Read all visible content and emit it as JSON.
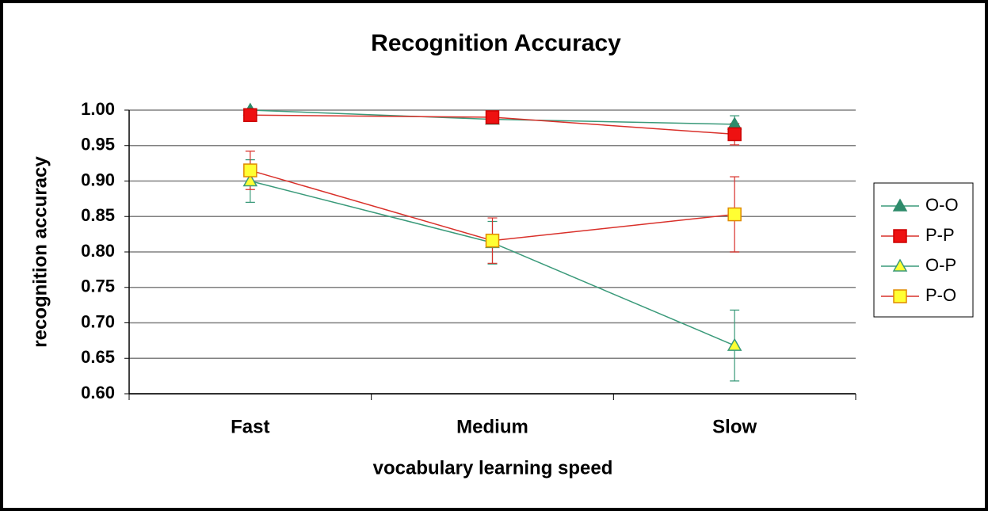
{
  "chart_data": {
    "type": "line",
    "title": "Recognition Accuracy",
    "xlabel": "vocabulary learning speed",
    "ylabel": "recognition accuracy",
    "categories": [
      "Fast",
      "Medium",
      "Slow"
    ],
    "ylim": [
      0.6,
      1.0
    ],
    "yticks": [
      {
        "value": 0.6,
        "label": "0.60"
      },
      0.65,
      {
        "value": 0.7,
        "label": "0.70"
      },
      0.75,
      {
        "value": 0.8,
        "label": "0.80"
      },
      0.85,
      {
        "value": 0.9,
        "label": "0.90"
      },
      0.95,
      {
        "value": 1.0,
        "label": "1.00"
      }
    ],
    "grid": true,
    "legend": "right",
    "series": [
      {
        "name": "O-O",
        "color": "#3a9a7a",
        "marker": "triangle",
        "marker_color": "#2e8b6b",
        "marker_edge": "#2e8b6b",
        "values": [
          1.0,
          0.987,
          0.98
        ],
        "errors": [
          0.002,
          0.004,
          0.012
        ]
      },
      {
        "name": "P-P",
        "color": "#d9302a",
        "marker": "square",
        "marker_color": "#ee1111",
        "marker_edge": "#cc0000",
        "values": [
          0.993,
          0.99,
          0.966
        ],
        "errors": [
          0.004,
          0.004,
          0.015
        ]
      },
      {
        "name": "O-P",
        "color": "#3a9a7a",
        "marker": "triangle",
        "marker_color": "#ffff33",
        "marker_edge": "#3a9a7a",
        "values": [
          0.9,
          0.813,
          0.668
        ],
        "errors": [
          0.03,
          0.03,
          0.05
        ]
      },
      {
        "name": "P-O",
        "color": "#d9302a",
        "marker": "square",
        "marker_color": "#ffff33",
        "marker_edge": "#e08a00",
        "values": [
          0.915,
          0.816,
          0.853
        ],
        "errors": [
          0.027,
          0.032,
          0.053
        ]
      }
    ]
  }
}
